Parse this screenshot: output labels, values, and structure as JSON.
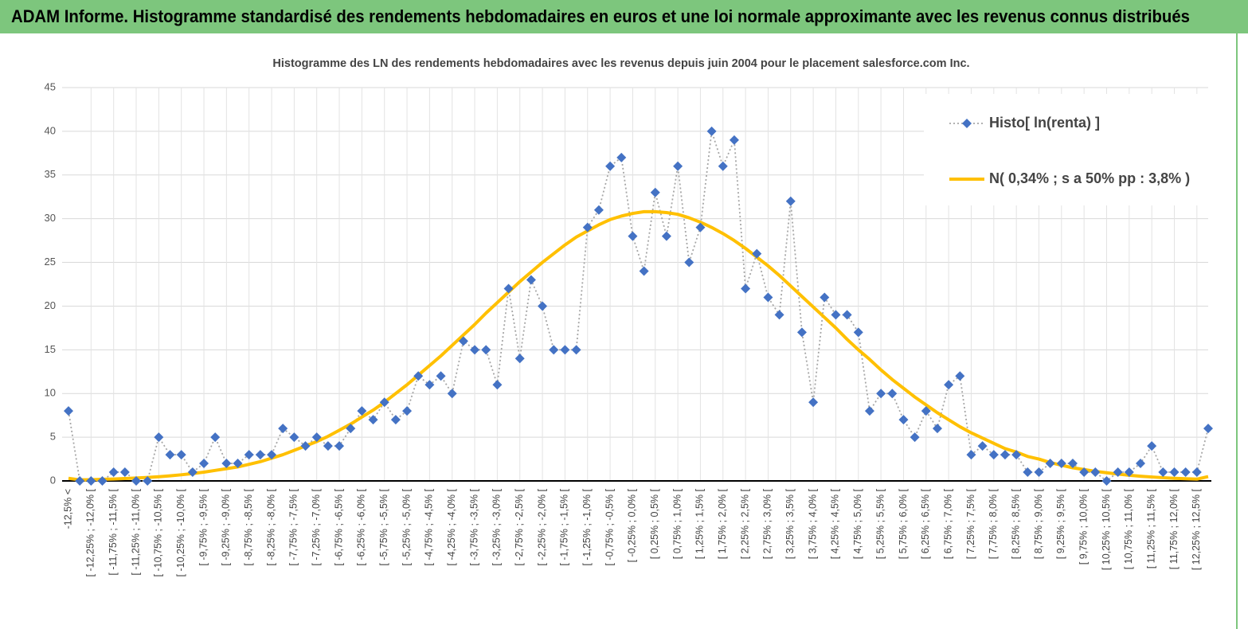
{
  "header": {
    "title": "ADAM Informe. Histogramme standardisé des rendements hebdomadaires en euros et une loi normale approximante avec les revenus connus distribués"
  },
  "chart_data": {
    "type": "line",
    "title": "Histogramme  des LN des rendements hebdomadaires avec les revenus depuis juin 2004  pour le placement salesforce.com Inc.",
    "categories": [
      "-12,5% <",
      null,
      "[ -12,25% ; -12,0% [",
      null,
      "[ -11,75% ; -11,5% [",
      null,
      "[ -11,25% ; -11,0% [",
      null,
      "[ -10,75% ; -10,5% [",
      null,
      "[ -10,25% ; -10,0% [",
      null,
      "[ -9,75% ; -9,5% [",
      null,
      "[ -9,25% ; -9,0% [",
      null,
      "[ -8,75% ; -8,5% [",
      null,
      "[ -8,25% ; -8,0% [",
      null,
      "[ -7,75% ; -7,5% [",
      null,
      "[ -7,25% ; -7,0% [",
      null,
      "[ -6,75% ; -6,5% [",
      null,
      "[ -6,25% ; -6,0% [",
      null,
      "[ -5,75% ; -5,5% [",
      null,
      "[ -5,25% ; -5,0% [",
      null,
      "[ -4,75% ; -4,5% [",
      null,
      "[ -4,25% ; -4,0% [",
      null,
      "[ -3,75% ; -3,5% [",
      null,
      "[ -3,25% ; -3,0% [",
      null,
      "[ -2,75% ; -2,5% [",
      null,
      "[ -2,25% ; -2,0% [",
      null,
      "[ -1,75% ; -1,5% [",
      null,
      "[ -1,25% ; -1,0% [",
      null,
      "[ -0,75% ; -0,5% [",
      null,
      "[ -0,25% ; 0,0% [",
      null,
      "[ 0,25% ; 0,5% [",
      null,
      "[ 0,75% ; 1,0% [",
      null,
      "[ 1,25% ; 1,5% [",
      null,
      "[ 1,75% ; 2,0% [",
      null,
      "[ 2,25% ; 2,5% [",
      null,
      "[ 2,75% ; 3,0% [",
      null,
      "[ 3,25% ; 3,5% [",
      null,
      "[ 3,75% ; 4,0% [",
      null,
      "[ 4,25% ; 4,5% [",
      null,
      "[ 4,75% ; 5,0% [",
      null,
      "[ 5,25% ; 5,5% [",
      null,
      "[ 5,75% ; 6,0% [",
      null,
      "[ 6,25% ; 6,5% [",
      null,
      "[ 6,75% ; 7,0% [",
      null,
      "[ 7,25% ; 7,5% [",
      null,
      "[ 7,75% ; 8,0% [",
      null,
      "[ 8,25% ; 8,5% [",
      null,
      "[ 8,75% ; 9,0% [",
      null,
      "[ 9,25% ; 9,5% [",
      null,
      "[ 9,75% ; 10,0% [",
      null,
      "[ 10,25% ; 10,5% [",
      null,
      "[ 10,75% ; 11,0% [",
      null,
      "[ 11,25% ; 11,5% [",
      null,
      "[ 11,75% ; 12,0% [",
      null,
      "[ 12,25% ; 12,5% [",
      null
    ],
    "series": [
      {
        "name": "Histo[ ln(renta) ]",
        "color": "#4472c4",
        "line_color": "#a6a6a6",
        "line_style": "dotted",
        "marker": "diamond",
        "values": [
          8,
          0,
          0,
          0,
          1,
          1,
          0,
          0,
          5,
          3,
          3,
          1,
          2,
          5,
          2,
          2,
          3,
          3,
          3,
          6,
          5,
          4,
          5,
          4,
          4,
          6,
          8,
          7,
          9,
          7,
          8,
          12,
          11,
          12,
          10,
          16,
          15,
          15,
          11,
          22,
          14,
          23,
          20,
          15,
          15,
          15,
          29,
          31,
          36,
          37,
          28,
          24,
          33,
          28,
          36,
          25,
          29,
          40,
          36,
          39,
          22,
          26,
          21,
          19,
          32,
          17,
          9,
          21,
          19,
          19,
          17,
          8,
          10,
          10,
          7,
          5,
          8,
          6,
          11,
          12,
          3,
          4,
          3,
          3,
          3,
          1,
          1,
          2,
          2,
          2,
          1,
          1,
          0,
          1,
          1,
          2,
          4,
          1,
          1,
          1,
          1,
          6
        ]
      },
      {
        "name": "N( 0,34% ; s a 50% pp : 3,8% )",
        "color": "#ffc000",
        "line_style": "solid",
        "marker": "none",
        "values": [
          0.3,
          0.12,
          0.14,
          0.18,
          0.22,
          0.27,
          0.33,
          0.4,
          0.48,
          0.58,
          0.7,
          0.84,
          1.0,
          1.2,
          1.4,
          1.6,
          1.9,
          2.2,
          2.6,
          3.0,
          3.5,
          4.0,
          4.5,
          5.1,
          5.8,
          6.5,
          7.3,
          8.1,
          9.0,
          10.0,
          11.0,
          12.1,
          13.2,
          14.3,
          15.5,
          16.7,
          17.9,
          19.2,
          20.4,
          21.6,
          22.8,
          23.9,
          25.0,
          26.0,
          27.0,
          27.9,
          28.6,
          29.3,
          29.9,
          30.3,
          30.6,
          30.8,
          30.8,
          30.7,
          30.5,
          30.1,
          29.6,
          29.0,
          28.3,
          27.5,
          26.6,
          25.6,
          24.6,
          23.5,
          22.3,
          21.1,
          19.9,
          18.7,
          17.5,
          16.2,
          15.0,
          13.9,
          12.7,
          11.6,
          10.6,
          9.6,
          8.7,
          7.8,
          7.0,
          6.2,
          5.5,
          4.9,
          4.3,
          3.7,
          3.3,
          2.8,
          2.5,
          2.1,
          1.8,
          1.5,
          1.3,
          1.1,
          0.93,
          0.78,
          0.65,
          0.54,
          0.45,
          0.37,
          0.3,
          0.25,
          0.2,
          0.5
        ]
      }
    ],
    "ylim": [
      0,
      45
    ],
    "yticks": [
      0,
      5,
      10,
      15,
      20,
      25,
      30,
      35,
      40,
      45
    ],
    "grid": true,
    "legend": "upper right"
  }
}
